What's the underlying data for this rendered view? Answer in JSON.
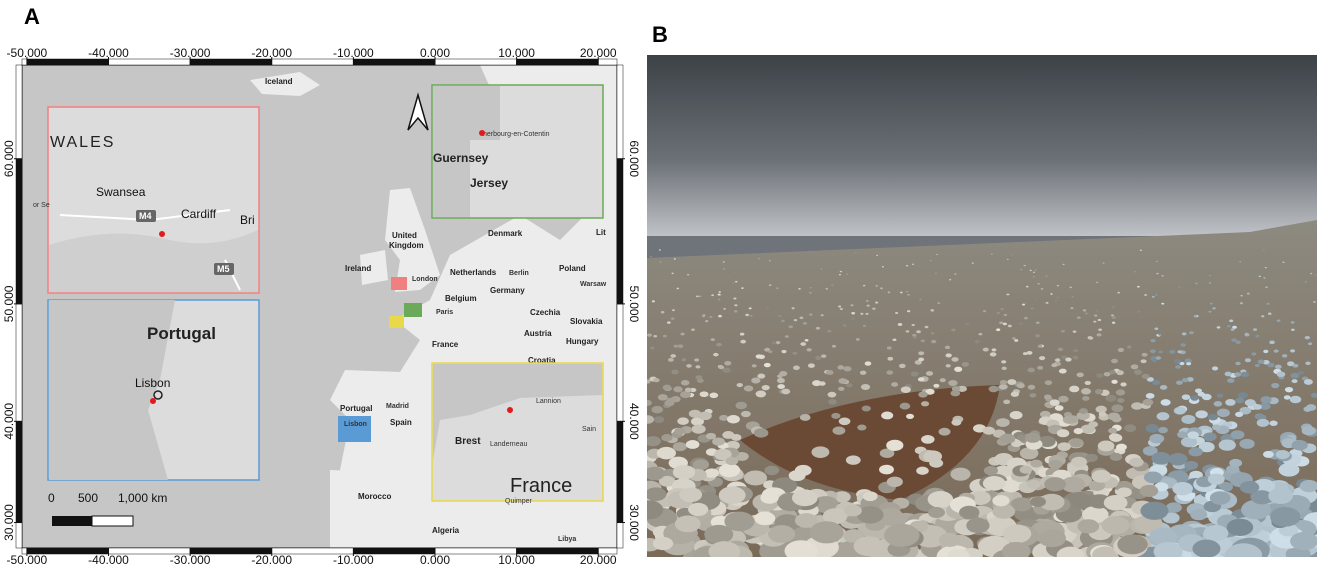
{
  "figure": {
    "panel_a": "A",
    "panel_b": "B"
  },
  "map": {
    "xlim": [
      -50.6,
      22.3
    ],
    "ylim": [
      27.3,
      65.2
    ],
    "y_scale": "mercator",
    "xticks": [
      {
        "value": -50,
        "label": "-50.000"
      },
      {
        "value": -40,
        "label": "-40.000"
      },
      {
        "value": -30,
        "label": "-30.000"
      },
      {
        "value": -20,
        "label": "-20.000"
      },
      {
        "value": -10,
        "label": "-10.000"
      },
      {
        "value": 0,
        "label": "0.000"
      },
      {
        "value": 10,
        "label": "10.000"
      },
      {
        "value": 20,
        "label": "20.000"
      }
    ],
    "yticks": [
      {
        "value": 30,
        "label": "30.000"
      },
      {
        "value": 40,
        "label": "40.000"
      },
      {
        "value": 50,
        "label": "50.000"
      },
      {
        "value": 60,
        "label": "60.000"
      }
    ],
    "labels": {
      "iceland": "Iceland",
      "denmark": "Denmark",
      "united": "United",
      "kingdom": "Kingdom",
      "ireland": "Ireland",
      "london": "London",
      "netherlands": "Netherlands",
      "berlin": "Berlin",
      "poland": "Poland",
      "warsaw": "Warsaw",
      "belgium": "Belgium",
      "germany": "Germany",
      "paris": "Paris",
      "czechia": "Czechia",
      "slovakia": "Slovakia",
      "austria": "Austria",
      "hungary": "Hungary",
      "france": "France",
      "croatia": "Croatia",
      "portugal": "Portugal",
      "madrid": "Madrid",
      "spain": "Spain",
      "lisbon": "Lisbon",
      "morocco": "Morocco",
      "algeria": "Algeria",
      "libya": "Libya",
      "lit": "Lit"
    },
    "insets": {
      "wales": {
        "title": "WALES",
        "swansea": "Swansea",
        "cardiff": "Cardiff",
        "bri": "Bri",
        "m4": "M4",
        "m5": "M5",
        "or_se": "or Se"
      },
      "portugal": {
        "title": "Portugal",
        "lisbon": "Lisbon"
      },
      "normandy": {
        "cherbourg": "herbourg-en-Cotentin",
        "guernsey": "Guernsey",
        "jersey": "Jersey"
      },
      "brittany": {
        "lannion": "Lannion",
        "brest": "Brest",
        "landerneau": "Landerneau",
        "france": "France",
        "quimper": "Quimper",
        "sain": "Sain"
      }
    },
    "scale_bar": {
      "zero": "0",
      "mid": "500",
      "end": "1,000 km"
    }
  }
}
